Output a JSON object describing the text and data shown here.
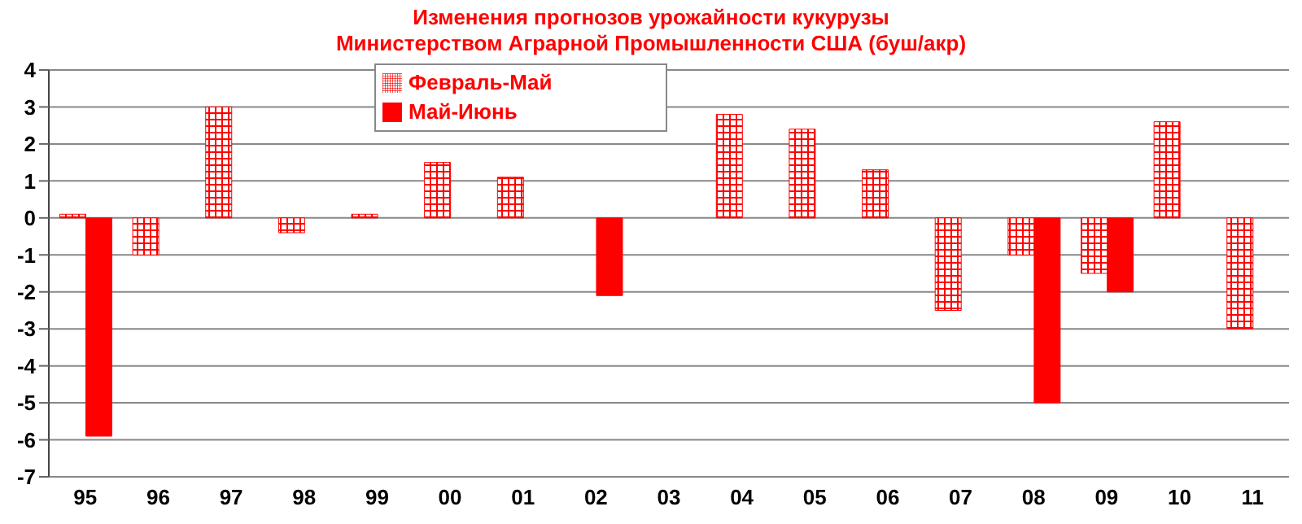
{
  "chart_data": {
    "type": "bar",
    "title": "Изменения прогнозов урожайности кукурузы",
    "subtitle": "Министерством Аграрной Промышленности США (буш/акр)",
    "categories": [
      "95",
      "96",
      "97",
      "98",
      "99",
      "00",
      "01",
      "02",
      "03",
      "04",
      "05",
      "06",
      "07",
      "08",
      "09",
      "10",
      "11"
    ],
    "series": [
      {
        "name": "Февраль-Май",
        "color": "#ff0000",
        "values": [
          0.1,
          -1,
          3,
          -0.4,
          0.1,
          1.5,
          1.1,
          null,
          null,
          2.8,
          2.4,
          1.3,
          -2.5,
          -1,
          -1.5,
          2.6,
          -3
        ]
      },
      {
        "name": "Май-Июнь",
        "color": "#ff0000",
        "values": [
          -5.9,
          null,
          null,
          null,
          null,
          null,
          null,
          -2.1,
          null,
          null,
          null,
          null,
          null,
          -5,
          -2,
          null,
          null
        ]
      }
    ],
    "ylim": [
      -7,
      4
    ],
    "yticks": [
      -7,
      -6,
      -5,
      -4,
      -3,
      -2,
      -1,
      0,
      1,
      2,
      3,
      4
    ],
    "grid": "y",
    "legend": "top"
  }
}
